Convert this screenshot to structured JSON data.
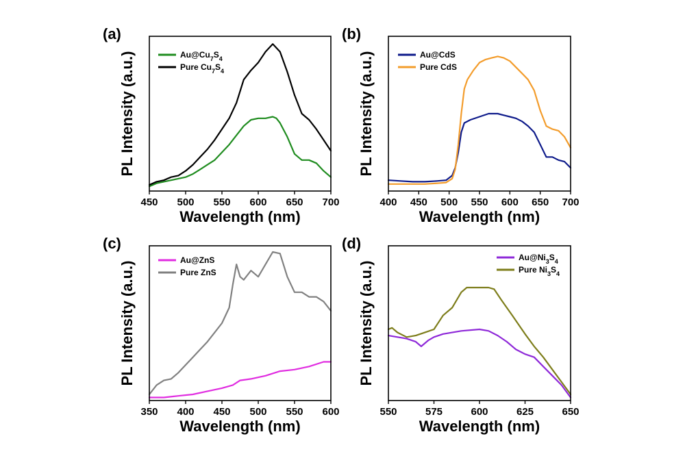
{
  "chart_data": [
    {
      "panel": "(a)",
      "type": "line",
      "xlabel": "Wavelength (nm)",
      "ylabel": "PL Intensity (a.u.)",
      "xlim": [
        450,
        700
      ],
      "ylim": [
        0,
        1
      ],
      "xticks": [
        450,
        500,
        550,
        600,
        650,
        700
      ],
      "legend_position": "top-left",
      "series": [
        {
          "name": "Au@Cu",
          "name_parts": [
            [
              "Au@Cu",
              ""
            ],
            [
              "7",
              "sub"
            ],
            [
              "S",
              ""
            ],
            [
              "4",
              "sub"
            ]
          ],
          "color": "#1f8c1f",
          "x": [
            450,
            460,
            470,
            480,
            490,
            500,
            510,
            520,
            530,
            540,
            550,
            560,
            570,
            580,
            590,
            600,
            610,
            620,
            625,
            630,
            640,
            650,
            660,
            670,
            680,
            690,
            700
          ],
          "y": [
            0.03,
            0.05,
            0.06,
            0.07,
            0.08,
            0.09,
            0.11,
            0.14,
            0.17,
            0.2,
            0.25,
            0.3,
            0.36,
            0.42,
            0.46,
            0.47,
            0.47,
            0.48,
            0.47,
            0.44,
            0.35,
            0.24,
            0.2,
            0.2,
            0.18,
            0.13,
            0.09
          ]
        },
        {
          "name": "Pure Cu",
          "name_parts": [
            [
              "Pure Cu",
              ""
            ],
            [
              "7",
              "sub"
            ],
            [
              "S",
              ""
            ],
            [
              "4",
              "sub"
            ]
          ],
          "color": "#000000",
          "x": [
            450,
            460,
            470,
            480,
            490,
            500,
            510,
            520,
            530,
            540,
            550,
            560,
            570,
            580,
            590,
            600,
            610,
            620,
            630,
            640,
            650,
            660,
            670,
            680,
            690,
            700
          ],
          "y": [
            0.04,
            0.06,
            0.07,
            0.09,
            0.1,
            0.13,
            0.17,
            0.22,
            0.27,
            0.33,
            0.4,
            0.47,
            0.57,
            0.72,
            0.78,
            0.83,
            0.9,
            0.95,
            0.9,
            0.77,
            0.62,
            0.5,
            0.46,
            0.4,
            0.33,
            0.26
          ]
        }
      ]
    },
    {
      "panel": "(b)",
      "type": "line",
      "xlabel": "Wavelength (nm)",
      "ylabel": "PL Intensity (a.u.)",
      "xlim": [
        400,
        700
      ],
      "ylim": [
        0,
        1
      ],
      "xticks": [
        400,
        450,
        500,
        550,
        600,
        650,
        700
      ],
      "legend_position": "top-left",
      "series": [
        {
          "name": "Au@CdS",
          "name_parts": [
            [
              "Au@CdS",
              ""
            ]
          ],
          "color": "#0d1a8a",
          "x": [
            400,
            420,
            440,
            460,
            480,
            495,
            505,
            510,
            515,
            520,
            525,
            535,
            550,
            565,
            580,
            590,
            600,
            610,
            620,
            630,
            640,
            650,
            660,
            670,
            680,
            690,
            700
          ],
          "y": [
            0.07,
            0.065,
            0.06,
            0.06,
            0.065,
            0.07,
            0.1,
            0.15,
            0.25,
            0.38,
            0.44,
            0.46,
            0.48,
            0.5,
            0.5,
            0.49,
            0.48,
            0.47,
            0.45,
            0.42,
            0.38,
            0.3,
            0.22,
            0.22,
            0.2,
            0.19,
            0.15
          ]
        },
        {
          "name": "Pure CdS",
          "name_parts": [
            [
              "Pure CdS",
              ""
            ]
          ],
          "color": "#f39c2b",
          "x": [
            400,
            420,
            440,
            460,
            480,
            495,
            505,
            510,
            515,
            520,
            525,
            530,
            540,
            550,
            560,
            570,
            580,
            590,
            600,
            610,
            620,
            630,
            640,
            650,
            660,
            670,
            680,
            690,
            700
          ],
          "y": [
            0.045,
            0.045,
            0.045,
            0.045,
            0.05,
            0.055,
            0.08,
            0.14,
            0.3,
            0.5,
            0.66,
            0.72,
            0.78,
            0.83,
            0.85,
            0.86,
            0.87,
            0.86,
            0.84,
            0.8,
            0.76,
            0.72,
            0.65,
            0.52,
            0.42,
            0.4,
            0.39,
            0.35,
            0.28
          ]
        }
      ]
    },
    {
      "panel": "(c)",
      "type": "line",
      "xlabel": "Wavelength (nm)",
      "ylabel": "PL Intensity (a.u.)",
      "xlim": [
        350,
        600
      ],
      "ylim": [
        0,
        1
      ],
      "xticks": [
        350,
        400,
        450,
        500,
        550,
        600
      ],
      "legend_position": "top-left",
      "series": [
        {
          "name": "Au@ZnS",
          "name_parts": [
            [
              "Au@ZnS",
              ""
            ]
          ],
          "color": "#e02ce0",
          "x": [
            350,
            370,
            390,
            410,
            430,
            450,
            465,
            475,
            490,
            510,
            530,
            550,
            570,
            590,
            600
          ],
          "y": [
            0.02,
            0.02,
            0.03,
            0.04,
            0.06,
            0.08,
            0.1,
            0.13,
            0.14,
            0.16,
            0.19,
            0.2,
            0.22,
            0.25,
            0.25
          ]
        },
        {
          "name": "Pure ZnS",
          "name_parts": [
            [
              "Pure ZnS",
              ""
            ]
          ],
          "color": "#808080",
          "x": [
            350,
            360,
            370,
            380,
            390,
            400,
            410,
            420,
            430,
            440,
            450,
            460,
            465,
            470,
            475,
            480,
            490,
            500,
            510,
            520,
            530,
            540,
            550,
            560,
            570,
            580,
            590,
            600
          ],
          "y": [
            0.04,
            0.1,
            0.13,
            0.14,
            0.18,
            0.23,
            0.28,
            0.33,
            0.38,
            0.44,
            0.5,
            0.6,
            0.75,
            0.88,
            0.8,
            0.78,
            0.84,
            0.8,
            0.88,
            0.96,
            0.95,
            0.8,
            0.7,
            0.7,
            0.67,
            0.67,
            0.64,
            0.58
          ]
        }
      ]
    },
    {
      "panel": "(d)",
      "type": "line",
      "xlabel": "Wavelength (nm)",
      "ylabel": "PL Intensity (a.u.)",
      "xlim": [
        550,
        650
      ],
      "ylim": [
        0,
        1
      ],
      "xticks": [
        550,
        575,
        600,
        625,
        650
      ],
      "legend_position": "top-right",
      "series": [
        {
          "name": "Au@Ni",
          "name_parts": [
            [
              "Au@Ni",
              ""
            ],
            [
              "3",
              "sub"
            ],
            [
              "S",
              ""
            ],
            [
              "4",
              "sub"
            ]
          ],
          "color": "#8e28d8",
          "x": [
            550,
            555,
            560,
            565,
            568,
            572,
            575,
            580,
            590,
            600,
            605,
            610,
            615,
            620,
            625,
            630,
            635,
            640,
            645,
            650
          ],
          "y": [
            0.42,
            0.41,
            0.4,
            0.38,
            0.35,
            0.39,
            0.41,
            0.43,
            0.45,
            0.46,
            0.45,
            0.42,
            0.38,
            0.33,
            0.3,
            0.28,
            0.22,
            0.16,
            0.1,
            0.02
          ]
        },
        {
          "name": "Pure Ni",
          "name_parts": [
            [
              "Pure Ni",
              ""
            ],
            [
              "3",
              "sub"
            ],
            [
              "S",
              ""
            ],
            [
              "4",
              "sub"
            ]
          ],
          "color": "#7d7d1a",
          "x": [
            550,
            552,
            555,
            560,
            565,
            570,
            575,
            580,
            585,
            590,
            593,
            600,
            605,
            608,
            612,
            618,
            625,
            630,
            635,
            640,
            645,
            650
          ],
          "y": [
            0.46,
            0.47,
            0.44,
            0.41,
            0.42,
            0.44,
            0.46,
            0.55,
            0.6,
            0.7,
            0.73,
            0.73,
            0.73,
            0.72,
            0.65,
            0.55,
            0.43,
            0.35,
            0.28,
            0.2,
            0.12,
            0.04
          ]
        }
      ]
    }
  ]
}
